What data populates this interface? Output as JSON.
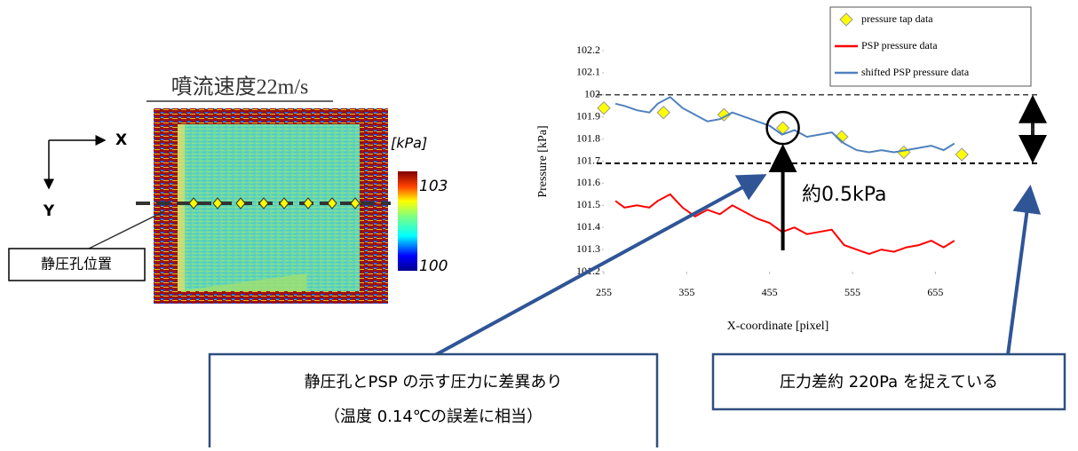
{
  "psp_image": {
    "title": "噴流速度22m/s",
    "x_axis": "X",
    "y_axis": "Y",
    "unit": "[kPa]",
    "colorbar_ticks": [
      100,
      103
    ],
    "callout": "静圧孔位置"
  },
  "chart_data": {
    "type": "line",
    "x_label": "X-coordinate [pixel]",
    "y_label": "Pressure [kPa]",
    "xlim": [
      255,
      705
    ],
    "xticks": [
      255,
      355,
      455,
      555,
      655
    ],
    "ylim": [
      101.2,
      102.2
    ],
    "yticks": [
      101.2,
      101.3,
      101.4,
      101.5,
      101.6,
      101.7,
      101.8,
      101.9,
      102,
      102.1,
      102.2
    ],
    "legend": "top-right",
    "series": [
      {
        "name": "pressure tap data",
        "color": "#ffff00",
        "marker": "diamond",
        "x": [
          255,
          327,
          400,
          471,
          542,
          617,
          687
        ],
        "values": [
          101.94,
          101.92,
          101.91,
          101.85,
          101.81,
          101.74,
          101.73
        ]
      },
      {
        "name": "PSP pressure data",
        "color": "#ff0000",
        "marker": "none",
        "x": [
          269,
          280,
          295,
          310,
          320,
          335,
          350,
          365,
          380,
          395,
          410,
          425,
          440,
          455,
          470,
          485,
          500,
          515,
          530,
          545,
          560,
          575,
          590,
          605,
          620,
          635,
          650,
          665,
          678
        ],
        "values": [
          101.52,
          101.49,
          101.5,
          101.49,
          101.52,
          101.55,
          101.49,
          101.45,
          101.48,
          101.46,
          101.5,
          101.47,
          101.44,
          101.42,
          101.38,
          101.4,
          101.37,
          101.38,
          101.39,
          101.32,
          101.3,
          101.28,
          101.3,
          101.29,
          101.31,
          101.32,
          101.34,
          101.31,
          101.34
        ]
      },
      {
        "name": "shifted PSP pressure data",
        "color": "#4f81bd",
        "marker": "none",
        "x": [
          269,
          280,
          295,
          310,
          320,
          335,
          350,
          365,
          380,
          395,
          410,
          425,
          440,
          455,
          470,
          485,
          500,
          515,
          530,
          545,
          560,
          575,
          590,
          605,
          620,
          635,
          650,
          665,
          678
        ],
        "values": [
          101.96,
          101.95,
          101.93,
          101.92,
          101.96,
          101.99,
          101.94,
          101.91,
          101.88,
          101.89,
          101.92,
          101.9,
          101.88,
          101.86,
          101.82,
          101.84,
          101.81,
          101.82,
          101.83,
          101.78,
          101.75,
          101.74,
          101.75,
          101.74,
          101.75,
          101.76,
          101.77,
          101.75,
          101.78
        ]
      }
    ],
    "reference_lines": [
      102,
      101.69
    ],
    "annotation": "約0.5kPa"
  },
  "notes": {
    "left_box": [
      "静圧孔とPSP の示す圧力に差異あり",
      "（温度 0.14℃の誤差に相当）"
    ],
    "right_box": "圧力差約 220Pa を捉えている"
  }
}
